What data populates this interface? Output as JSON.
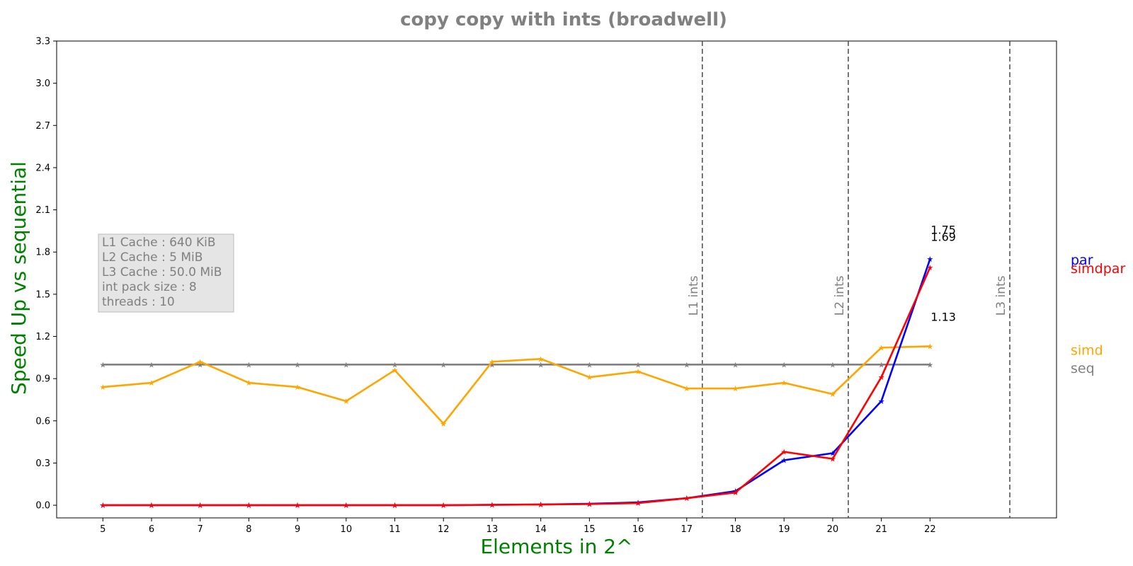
{
  "chart_data": {
    "type": "line",
    "title": "copy copy with ints  (broadwell)",
    "xlabel": "Elements in 2^",
    "ylabel": "Speed Up vs sequential",
    "x": [
      5,
      6,
      7,
      8,
      9,
      10,
      11,
      12,
      13,
      14,
      15,
      16,
      17,
      18,
      19,
      20,
      21,
      22
    ],
    "xlim": [
      4.05,
      24.6
    ],
    "ylim": [
      -0.09,
      3.3
    ],
    "yticks": [
      "0.0",
      "0.3",
      "0.6",
      "0.9",
      "1.2",
      "1.5",
      "1.8",
      "2.1",
      "2.4",
      "2.7",
      "3.0",
      "3.3"
    ],
    "xticks": [
      "5",
      "6",
      "7",
      "8",
      "9",
      "10",
      "11",
      "12",
      "13",
      "14",
      "15",
      "16",
      "17",
      "18",
      "19",
      "20",
      "21",
      "22"
    ],
    "series": [
      {
        "name": "seq",
        "color": "#808080",
        "values": [
          1,
          1,
          1,
          1,
          1,
          1,
          1,
          1,
          1,
          1,
          1,
          1,
          1,
          1,
          1,
          1,
          1,
          1
        ]
      },
      {
        "name": "simd",
        "color": "#FFA500",
        "values": [
          0.84,
          0.87,
          1.02,
          0.87,
          0.84,
          0.74,
          0.96,
          0.58,
          1.02,
          1.04,
          0.91,
          0.95,
          0.83,
          0.83,
          0.87,
          0.79,
          1.12,
          1.13
        ]
      },
      {
        "name": "par",
        "color": "#0000FF",
        "values": [
          0.0,
          0.0,
          0.0,
          0.0,
          0.0,
          0.0,
          0.0,
          0.0,
          0.003,
          0.005,
          0.01,
          0.02,
          0.05,
          0.1,
          0.32,
          0.37,
          0.74,
          1.75
        ]
      },
      {
        "name": "simdpar",
        "color": "#FF0000",
        "values": [
          0.0,
          0.0,
          0.0,
          0.0,
          0.0,
          0.0,
          0.0,
          0.0,
          0.003,
          0.005,
          0.008,
          0.015,
          0.05,
          0.09,
          0.38,
          0.33,
          0.91,
          1.69
        ]
      }
    ],
    "end_labels": [
      "1.75",
      "1.69",
      "1.13"
    ],
    "cache_lines": [
      {
        "label": "L1 ints",
        "x": 17.32
      },
      {
        "label": "L2 ints",
        "x": 20.32
      },
      {
        "label": "L3 ints",
        "x": 23.64
      }
    ],
    "info_box": [
      "L1 Cache : 640 KiB",
      "L2 Cache : 5 MiB",
      "L3 Cache : 50.0 MiB",
      "int pack size : 8",
      "threads : 10"
    ],
    "title_color": "#808080",
    "axis_label_color": "#008000",
    "grid": false,
    "legend": "right"
  }
}
